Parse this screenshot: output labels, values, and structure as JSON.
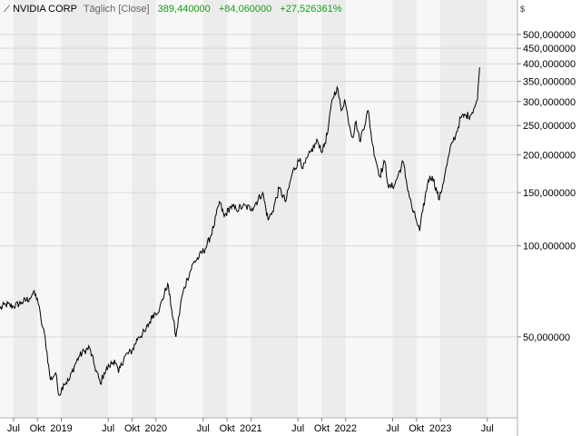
{
  "header": {
    "symbol": "NVIDIA CORP",
    "interval": "Täglich [Close]",
    "close": "389,440000",
    "change": "+84,060000",
    "change_pct": "+27,526361%"
  },
  "currency": "$",
  "colors": {
    "band_light": "#f7f7f7",
    "band_dark": "#ececec",
    "line": "#000000",
    "positive": "#1a9b1a"
  },
  "chart_data": {
    "type": "line",
    "y_scale": "log",
    "ylim": [
      27,
      650
    ],
    "xlim": [
      "2018-05-10",
      "2023-10-25"
    ],
    "ytick_values": [
      50,
      100,
      150,
      200,
      250,
      300,
      350,
      400,
      450,
      500
    ],
    "ytick_labels": [
      "50,000000",
      "100,000000",
      "150,000000",
      "200,000000",
      "250,000000",
      "300,000000",
      "350,000000",
      "400,000000",
      "450,000000",
      "500,000000"
    ],
    "xticks": [
      {
        "date": "2018-07-01",
        "label": "Jul"
      },
      {
        "date": "2018-10-01",
        "label": "Okt"
      },
      {
        "date": "2019-01-01",
        "label": "2019"
      },
      {
        "date": "2019-07-01",
        "label": "Jul"
      },
      {
        "date": "2019-10-01",
        "label": "Okt"
      },
      {
        "date": "2020-01-01",
        "label": "2020"
      },
      {
        "date": "2020-07-01",
        "label": "Jul"
      },
      {
        "date": "2020-10-01",
        "label": "Okt"
      },
      {
        "date": "2021-01-01",
        "label": "2021"
      },
      {
        "date": "2021-07-01",
        "label": "Jul"
      },
      {
        "date": "2021-10-01",
        "label": "Okt"
      },
      {
        "date": "2022-01-01",
        "label": "2022"
      },
      {
        "date": "2022-07-01",
        "label": "Jul"
      },
      {
        "date": "2022-10-01",
        "label": "Okt"
      },
      {
        "date": "2023-01-01",
        "label": "2023"
      },
      {
        "date": "2023-07-01",
        "label": "Jul"
      }
    ],
    "series": [
      {
        "points": [
          [
            "2018-05-10",
            62
          ],
          [
            "2018-06-01",
            64
          ],
          [
            "2018-07-01",
            63
          ],
          [
            "2018-08-01",
            65
          ],
          [
            "2018-09-01",
            67
          ],
          [
            "2018-09-15",
            70
          ],
          [
            "2018-10-01",
            67
          ],
          [
            "2018-10-15",
            57
          ],
          [
            "2018-11-01",
            49
          ],
          [
            "2018-11-20",
            36
          ],
          [
            "2018-12-10",
            38
          ],
          [
            "2018-12-24",
            32
          ],
          [
            "2019-01-10",
            35
          ],
          [
            "2019-02-01",
            36
          ],
          [
            "2019-02-20",
            40
          ],
          [
            "2019-03-10",
            43
          ],
          [
            "2019-04-01",
            45
          ],
          [
            "2019-04-20",
            46
          ],
          [
            "2019-05-10",
            40
          ],
          [
            "2019-06-01",
            35
          ],
          [
            "2019-06-15",
            38
          ],
          [
            "2019-07-05",
            40
          ],
          [
            "2019-07-25",
            42
          ],
          [
            "2019-08-10",
            38
          ],
          [
            "2019-09-01",
            43
          ],
          [
            "2019-10-01",
            45
          ],
          [
            "2019-10-25",
            50
          ],
          [
            "2019-11-20",
            52
          ],
          [
            "2019-12-20",
            59
          ],
          [
            "2020-01-15",
            62
          ],
          [
            "2020-02-15",
            75
          ],
          [
            "2020-03-01",
            62
          ],
          [
            "2020-03-18",
            50
          ],
          [
            "2020-04-10",
            68
          ],
          [
            "2020-05-01",
            78
          ],
          [
            "2020-05-25",
            88
          ],
          [
            "2020-06-15",
            92
          ],
          [
            "2020-07-15",
            100
          ],
          [
            "2020-08-10",
            115
          ],
          [
            "2020-09-02",
            140
          ],
          [
            "2020-09-20",
            125
          ],
          [
            "2020-10-15",
            135
          ],
          [
            "2020-11-05",
            132
          ],
          [
            "2020-12-01",
            135
          ],
          [
            "2021-01-05",
            133
          ],
          [
            "2021-02-15",
            150
          ],
          [
            "2021-03-08",
            122
          ],
          [
            "2021-03-25",
            130
          ],
          [
            "2021-04-20",
            155
          ],
          [
            "2021-05-15",
            140
          ],
          [
            "2021-06-10",
            175
          ],
          [
            "2021-07-10",
            195
          ],
          [
            "2021-07-20",
            180
          ],
          [
            "2021-08-20",
            205
          ],
          [
            "2021-09-15",
            222
          ],
          [
            "2021-10-04",
            205
          ],
          [
            "2021-10-25",
            240
          ],
          [
            "2021-11-10",
            305
          ],
          [
            "2021-11-29",
            335
          ],
          [
            "2021-12-15",
            280
          ],
          [
            "2021-12-28",
            305
          ],
          [
            "2022-01-10",
            265
          ],
          [
            "2022-01-28",
            228
          ],
          [
            "2022-02-10",
            258
          ],
          [
            "2022-02-24",
            222
          ],
          [
            "2022-03-29",
            280
          ],
          [
            "2022-04-15",
            215
          ],
          [
            "2022-05-12",
            170
          ],
          [
            "2022-06-01",
            190
          ],
          [
            "2022-06-16",
            155
          ],
          [
            "2022-07-10",
            160
          ],
          [
            "2022-08-10",
            190
          ],
          [
            "2022-08-25",
            160
          ],
          [
            "2022-09-15",
            132
          ],
          [
            "2022-09-30",
            122
          ],
          [
            "2022-10-13",
            112
          ],
          [
            "2022-10-25",
            130
          ],
          [
            "2022-11-15",
            165
          ],
          [
            "2022-12-01",
            170
          ],
          [
            "2022-12-28",
            142
          ],
          [
            "2023-01-20",
            175
          ],
          [
            "2023-02-15",
            220
          ],
          [
            "2023-03-01",
            232
          ],
          [
            "2023-03-20",
            265
          ],
          [
            "2023-04-10",
            270
          ],
          [
            "2023-04-26",
            270
          ],
          [
            "2023-05-10",
            285
          ],
          [
            "2023-05-24",
            305
          ],
          [
            "2023-06-01",
            389
          ]
        ]
      }
    ]
  }
}
